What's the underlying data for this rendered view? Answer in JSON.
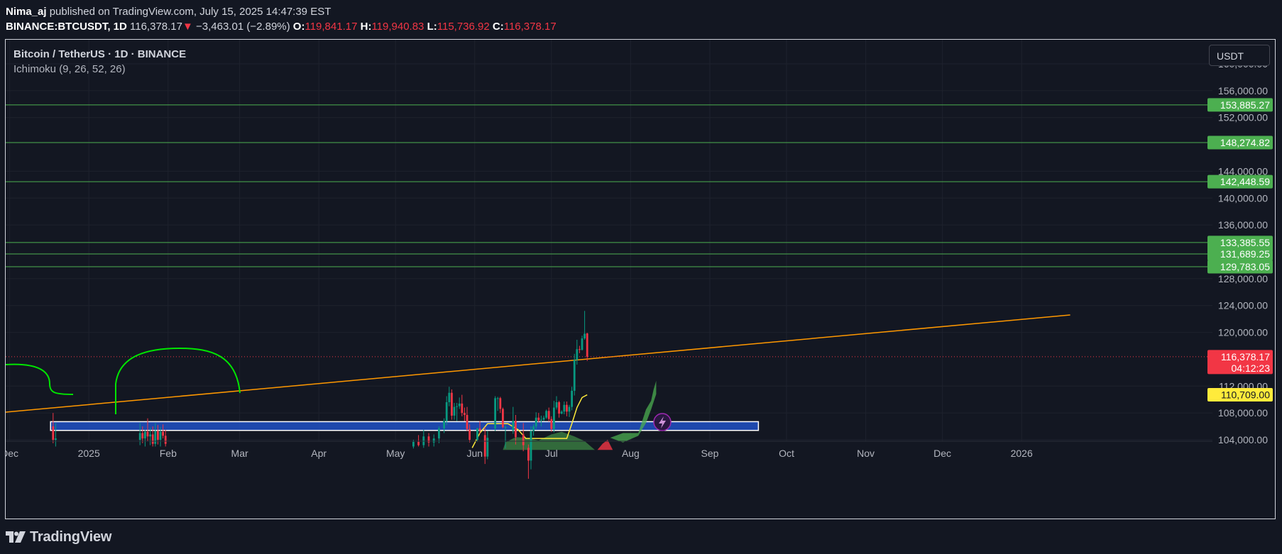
{
  "header": {
    "author": "Nima_aj",
    "published": "published on TradingView.com, July 15, 2025 14:47:39 EST",
    "symbol": "BINANCE:BTCUSDT, 1D",
    "price": "116,378.17",
    "change_arrow": "▼",
    "change": "−3,463.01 (−2.89%)",
    "o_label": "O:",
    "o_value": "119,841.17",
    "h_label": "H:",
    "h_value": "119,940.83",
    "l_label": "L:",
    "l_value": "115,736.92",
    "c_label": "C:",
    "c_value": "116,378.17"
  },
  "legend": {
    "title": "Bitcoin / TetherUS · 1D · BINANCE",
    "indicator": "Ichimoku (9, 26, 52, 26)"
  },
  "currency_button": "USDT",
  "footer": {
    "brand": "TradingView",
    "logo_icon": "tradingview-logo-icon"
  },
  "colors": {
    "background": "#131722",
    "grid": "#1e222d",
    "up": "#089981",
    "down": "#f23645",
    "level": "#4caf50",
    "trendline": "#ff9800",
    "zone": "#2151c4",
    "yellow": "#ffeb3b",
    "drawing": "#00e600"
  },
  "chart_data": {
    "type": "candlestick",
    "title": "Bitcoin / TetherUS · 1D · BINANCE",
    "ylim": [
      102500,
      162000
    ],
    "y_ticks": [
      "160,000.00",
      "156,000.00",
      "152,000.00",
      "144,000.00",
      "140,000.00",
      "136,000.00",
      "128,000.00",
      "124,000.00",
      "120,000.00",
      "112,000.00",
      "108,000.00",
      "104,000.00"
    ],
    "y_tick_values": [
      160000,
      156000,
      152000,
      144000,
      140000,
      136000,
      128000,
      124000,
      120000,
      112000,
      108000,
      104000
    ],
    "x_ticks": [
      "Dec",
      "2025",
      "Feb",
      "Mar",
      "Apr",
      "May",
      "Jun",
      "Jul",
      "Aug",
      "Sep",
      "Oct",
      "Nov",
      "Dec",
      "2026"
    ],
    "x_tick_dates": [
      "2024-12-01",
      "2025-01-01",
      "2025-02-01",
      "2025-03-01",
      "2025-04-01",
      "2025-05-01",
      "2025-06-01",
      "2025-07-01",
      "2025-08-01",
      "2025-09-01",
      "2025-10-01",
      "2025-11-01",
      "2025-12-01",
      "2026-01-01"
    ],
    "horizontal_levels": [
      {
        "value": 153885.27,
        "label": "153,885.27"
      },
      {
        "value": 148274.82,
        "label": "148,274.82"
      },
      {
        "value": 142448.59,
        "label": "142,448.59"
      },
      {
        "value": 133385.55,
        "label": "133,385.55"
      },
      {
        "value": 131689.25,
        "label": "131,689.25"
      },
      {
        "value": 129783.05,
        "label": "129,783.05"
      }
    ],
    "last_price": {
      "value": 116378.17,
      "label": "116,378.17",
      "countdown": "04:12:23"
    },
    "kijun_label": {
      "value": 110709.0,
      "label": "110,709.00"
    },
    "trendline": {
      "start": {
        "date": "2024-11-29",
        "value": 108100
      },
      "end": {
        "date": "2026-01-20",
        "value": 122600
      }
    },
    "support_zone": {
      "from": "2024-12-17",
      "to": "2025-09-20",
      "low": 105400,
      "high": 106700
    },
    "candles": [
      {
        "date": "2024-12-18",
        "open": 106000,
        "high": 108000,
        "low": 103500,
        "close": 104000
      },
      {
        "date": "2024-12-19",
        "open": 104000,
        "high": 106500,
        "low": 103000,
        "close": 104200
      },
      {
        "date": "2025-01-21",
        "open": 104000,
        "high": 106500,
        "low": 103200,
        "close": 105000
      },
      {
        "date": "2025-01-22",
        "open": 105000,
        "high": 106000,
        "low": 103500,
        "close": 104200
      },
      {
        "date": "2025-01-23",
        "open": 104200,
        "high": 105500,
        "low": 103000,
        "close": 105200
      },
      {
        "date": "2025-01-24",
        "open": 105200,
        "high": 107200,
        "low": 103800,
        "close": 104500
      },
      {
        "date": "2025-01-25",
        "open": 104500,
        "high": 105800,
        "low": 103200,
        "close": 104800
      },
      {
        "date": "2025-01-26",
        "open": 104800,
        "high": 106000,
        "low": 103000,
        "close": 103400
      },
      {
        "date": "2025-01-27",
        "open": 103400,
        "high": 106500,
        "low": 103000,
        "close": 105300
      },
      {
        "date": "2025-01-28",
        "open": 105300,
        "high": 106200,
        "low": 103300,
        "close": 104000
      },
      {
        "date": "2025-01-29",
        "open": 104000,
        "high": 105900,
        "low": 103000,
        "close": 105200
      },
      {
        "date": "2025-01-30",
        "open": 105200,
        "high": 106300,
        "low": 104200,
        "close": 104600
      },
      {
        "date": "2025-01-31",
        "open": 104600,
        "high": 105500,
        "low": 103000,
        "close": 103400
      },
      {
        "date": "2025-05-08",
        "open": 103000,
        "high": 104000,
        "low": 102700,
        "close": 103700
      },
      {
        "date": "2025-05-10",
        "open": 103700,
        "high": 104700,
        "low": 103000,
        "close": 103200
      },
      {
        "date": "2025-05-12",
        "open": 103200,
        "high": 105500,
        "low": 102800,
        "close": 104500
      },
      {
        "date": "2025-05-14",
        "open": 104500,
        "high": 105000,
        "low": 103000,
        "close": 103600
      },
      {
        "date": "2025-05-16",
        "open": 103600,
        "high": 104800,
        "low": 103000,
        "close": 104200
      },
      {
        "date": "2025-05-18",
        "open": 104200,
        "high": 106000,
        "low": 103500,
        "close": 105700
      },
      {
        "date": "2025-05-20",
        "open": 105700,
        "high": 107200,
        "low": 105000,
        "close": 106800
      },
      {
        "date": "2025-05-21",
        "open": 106800,
        "high": 110500,
        "low": 106200,
        "close": 109600
      },
      {
        "date": "2025-05-22",
        "open": 109600,
        "high": 111900,
        "low": 109000,
        "close": 111000
      },
      {
        "date": "2025-05-23",
        "open": 111000,
        "high": 111500,
        "low": 107000,
        "close": 107600
      },
      {
        "date": "2025-05-24",
        "open": 107600,
        "high": 109500,
        "low": 107000,
        "close": 108900
      },
      {
        "date": "2025-05-25",
        "open": 108900,
        "high": 109500,
        "low": 106800,
        "close": 109000
      },
      {
        "date": "2025-05-26",
        "open": 109000,
        "high": 110300,
        "low": 108600,
        "close": 109400
      },
      {
        "date": "2025-05-27",
        "open": 109400,
        "high": 110700,
        "low": 107500,
        "close": 108000
      },
      {
        "date": "2025-05-28",
        "open": 108000,
        "high": 108800,
        "low": 106800,
        "close": 107700
      },
      {
        "date": "2025-05-29",
        "open": 107700,
        "high": 108900,
        "low": 105300,
        "close": 105600
      },
      {
        "date": "2025-05-30",
        "open": 105600,
        "high": 106300,
        "low": 103600,
        "close": 104000
      },
      {
        "date": "2025-06-02",
        "open": 104000,
        "high": 105800,
        "low": 103700,
        "close": 105700
      },
      {
        "date": "2025-06-03",
        "open": 105700,
        "high": 106800,
        "low": 104900,
        "close": 105400
      },
      {
        "date": "2025-06-05",
        "open": 104700,
        "high": 105900,
        "low": 100400,
        "close": 101500
      },
      {
        "date": "2025-06-06",
        "open": 101500,
        "high": 105300,
        "low": 101100,
        "close": 104300
      },
      {
        "date": "2025-06-09",
        "open": 105700,
        "high": 110500,
        "low": 105300,
        "close": 110200
      },
      {
        "date": "2025-06-10",
        "open": 110200,
        "high": 110400,
        "low": 108300,
        "close": 110200
      },
      {
        "date": "2025-06-11",
        "open": 110200,
        "high": 110400,
        "low": 108000,
        "close": 108600
      },
      {
        "date": "2025-06-12",
        "open": 108600,
        "high": 108800,
        "low": 105700,
        "close": 105900
      },
      {
        "date": "2025-06-13",
        "open": 105900,
        "high": 106200,
        "low": 102700,
        "close": 105900
      },
      {
        "date": "2025-06-16",
        "open": 105400,
        "high": 108900,
        "low": 104900,
        "close": 106800
      },
      {
        "date": "2025-06-17",
        "open": 106800,
        "high": 107700,
        "low": 103300,
        "close": 104400
      },
      {
        "date": "2025-06-20",
        "open": 104800,
        "high": 106500,
        "low": 102300,
        "close": 103200
      },
      {
        "date": "2025-06-22",
        "open": 102800,
        "high": 103300,
        "low": 98200,
        "close": 100900
      },
      {
        "date": "2025-06-23",
        "open": 100900,
        "high": 106000,
        "low": 99600,
        "close": 105300
      },
      {
        "date": "2025-06-24",
        "open": 105300,
        "high": 106300,
        "low": 104600,
        "close": 106000
      },
      {
        "date": "2025-06-25",
        "open": 106000,
        "high": 108100,
        "low": 105600,
        "close": 107300
      },
      {
        "date": "2025-06-26",
        "open": 107300,
        "high": 108000,
        "low": 106600,
        "close": 106900
      },
      {
        "date": "2025-06-27",
        "open": 106900,
        "high": 107600,
        "low": 106000,
        "close": 107000
      },
      {
        "date": "2025-06-28",
        "open": 107000,
        "high": 107600,
        "low": 106800,
        "close": 107300
      },
      {
        "date": "2025-06-29",
        "open": 107300,
        "high": 108500,
        "low": 107100,
        "close": 108300
      },
      {
        "date": "2025-06-30",
        "open": 108300,
        "high": 108800,
        "low": 106700,
        "close": 107100
      },
      {
        "date": "2025-07-01",
        "open": 107100,
        "high": 107500,
        "low": 105200,
        "close": 105600
      },
      {
        "date": "2025-07-02",
        "open": 105600,
        "high": 109800,
        "low": 105100,
        "close": 108800
      },
      {
        "date": "2025-07-03",
        "open": 108800,
        "high": 110500,
        "low": 108500,
        "close": 109600
      },
      {
        "date": "2025-07-04",
        "open": 109600,
        "high": 109800,
        "low": 107300,
        "close": 107900
      },
      {
        "date": "2025-07-05",
        "open": 107900,
        "high": 108400,
        "low": 107800,
        "close": 108200
      },
      {
        "date": "2025-07-06",
        "open": 108200,
        "high": 109700,
        "low": 107800,
        "close": 109200
      },
      {
        "date": "2025-07-07",
        "open": 109200,
        "high": 109700,
        "low": 107500,
        "close": 108200
      },
      {
        "date": "2025-07-08",
        "open": 108200,
        "high": 109200,
        "low": 107400,
        "close": 108900
      },
      {
        "date": "2025-07-09",
        "open": 108900,
        "high": 111900,
        "low": 108400,
        "close": 111300
      },
      {
        "date": "2025-07-10",
        "open": 111300,
        "high": 116800,
        "low": 110600,
        "close": 115900
      },
      {
        "date": "2025-07-11",
        "open": 115900,
        "high": 118900,
        "low": 115200,
        "close": 117500
      },
      {
        "date": "2025-07-12",
        "open": 117500,
        "high": 118000,
        "low": 116900,
        "close": 117400
      },
      {
        "date": "2025-07-13",
        "open": 117400,
        "high": 119500,
        "low": 117300,
        "close": 119100
      },
      {
        "date": "2025-07-14",
        "open": 119100,
        "high": 123200,
        "low": 118900,
        "close": 119800
      },
      {
        "date": "2025-07-15",
        "open": 119841.17,
        "high": 119940.83,
        "low": 115736.92,
        "close": 116378.17
      }
    ]
  }
}
